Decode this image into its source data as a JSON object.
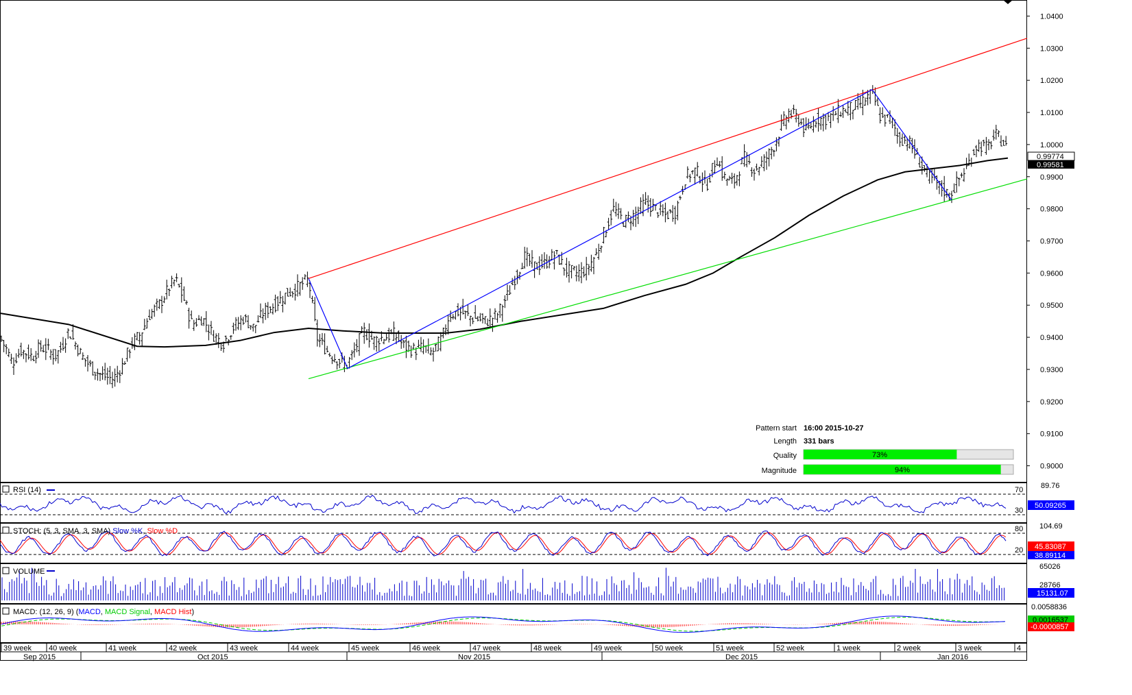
{
  "chart_data": {
    "type": "candlestick",
    "price_axis": {
      "ylim": [
        0.895,
        1.045
      ],
      "ticks": [
        "0.9000",
        "0.9100",
        "0.9200",
        "0.9300",
        "0.9400",
        "0.9500",
        "0.9600",
        "0.9700",
        "0.9800",
        "0.9900",
        "1.0000",
        "1.0100",
        "1.0200",
        "1.0300",
        "1.0400"
      ]
    },
    "last_price": "0.99774",
    "ma_value": "0.99581",
    "price_path": [
      {
        "x": 0,
        "y": 0.94
      },
      {
        "x": 10,
        "y": 0.936
      },
      {
        "x": 18,
        "y": 0.932
      },
      {
        "x": 30,
        "y": 0.936
      },
      {
        "x": 48,
        "y": 0.934
      },
      {
        "x": 58,
        "y": 0.937
      },
      {
        "x": 70,
        "y": 0.936
      },
      {
        "x": 80,
        "y": 0.934
      },
      {
        "x": 90,
        "y": 0.937
      },
      {
        "x": 100,
        "y": 0.942
      },
      {
        "x": 110,
        "y": 0.938
      },
      {
        "x": 120,
        "y": 0.934
      },
      {
        "x": 135,
        "y": 0.93
      },
      {
        "x": 150,
        "y": 0.928
      },
      {
        "x": 165,
        "y": 0.927
      },
      {
        "x": 178,
        "y": 0.931
      },
      {
        "x": 192,
        "y": 0.938
      },
      {
        "x": 205,
        "y": 0.941
      },
      {
        "x": 218,
        "y": 0.947
      },
      {
        "x": 235,
        "y": 0.951
      },
      {
        "x": 245,
        "y": 0.955
      },
      {
        "x": 256,
        "y": 0.958
      },
      {
        "x": 268,
        "y": 0.952
      },
      {
        "x": 280,
        "y": 0.944
      },
      {
        "x": 295,
        "y": 0.946
      },
      {
        "x": 310,
        "y": 0.941
      },
      {
        "x": 325,
        "y": 0.938
      },
      {
        "x": 340,
        "y": 0.943
      },
      {
        "x": 355,
        "y": 0.946
      },
      {
        "x": 370,
        "y": 0.943
      },
      {
        "x": 385,
        "y": 0.948
      },
      {
        "x": 400,
        "y": 0.95
      },
      {
        "x": 415,
        "y": 0.953
      },
      {
        "x": 430,
        "y": 0.955
      },
      {
        "x": 450,
        "y": 0.958
      },
      {
        "x": 462,
        "y": 0.94
      },
      {
        "x": 480,
        "y": 0.935
      },
      {
        "x": 505,
        "y": 0.931
      },
      {
        "x": 515,
        "y": 0.935
      },
      {
        "x": 530,
        "y": 0.942
      },
      {
        "x": 545,
        "y": 0.939
      },
      {
        "x": 560,
        "y": 0.94
      },
      {
        "x": 575,
        "y": 0.941
      },
      {
        "x": 590,
        "y": 0.937
      },
      {
        "x": 605,
        "y": 0.936
      },
      {
        "x": 618,
        "y": 0.937
      },
      {
        "x": 630,
        "y": 0.935
      },
      {
        "x": 645,
        "y": 0.94
      },
      {
        "x": 655,
        "y": 0.947
      },
      {
        "x": 670,
        "y": 0.948
      },
      {
        "x": 690,
        "y": 0.946
      },
      {
        "x": 710,
        "y": 0.945
      },
      {
        "x": 725,
        "y": 0.947
      },
      {
        "x": 740,
        "y": 0.953
      },
      {
        "x": 750,
        "y": 0.958
      },
      {
        "x": 765,
        "y": 0.965
      },
      {
        "x": 780,
        "y": 0.962
      },
      {
        "x": 795,
        "y": 0.963
      },
      {
        "x": 810,
        "y": 0.966
      },
      {
        "x": 825,
        "y": 0.961
      },
      {
        "x": 840,
        "y": 0.96
      },
      {
        "x": 855,
        "y": 0.961
      },
      {
        "x": 870,
        "y": 0.966
      },
      {
        "x": 880,
        "y": 0.972
      },
      {
        "x": 895,
        "y": 0.98
      },
      {
        "x": 910,
        "y": 0.976
      },
      {
        "x": 925,
        "y": 0.978
      },
      {
        "x": 940,
        "y": 0.982
      },
      {
        "x": 955,
        "y": 0.98
      },
      {
        "x": 970,
        "y": 0.978
      },
      {
        "x": 985,
        "y": 0.979
      },
      {
        "x": 1000,
        "y": 0.99
      },
      {
        "x": 1015,
        "y": 0.992
      },
      {
        "x": 1030,
        "y": 0.987
      },
      {
        "x": 1045,
        "y": 0.996
      },
      {
        "x": 1055,
        "y": 0.99
      },
      {
        "x": 1070,
        "y": 0.988
      },
      {
        "x": 1085,
        "y": 0.996
      },
      {
        "x": 1100,
        "y": 0.992
      },
      {
        "x": 1115,
        "y": 0.995
      },
      {
        "x": 1130,
        "y": 1.0
      },
      {
        "x": 1140,
        "y": 1.006
      },
      {
        "x": 1150,
        "y": 1.01
      },
      {
        "x": 1165,
        "y": 1.008
      },
      {
        "x": 1175,
        "y": 1.004
      },
      {
        "x": 1190,
        "y": 1.008
      },
      {
        "x": 1205,
        "y": 1.008
      },
      {
        "x": 1220,
        "y": 1.01
      },
      {
        "x": 1235,
        "y": 1.011
      },
      {
        "x": 1250,
        "y": 1.012
      },
      {
        "x": 1262,
        "y": 1.014
      },
      {
        "x": 1272,
        "y": 1.016
      },
      {
        "x": 1285,
        "y": 1.008
      },
      {
        "x": 1300,
        "y": 1.008
      },
      {
        "x": 1310,
        "y": 1.002
      },
      {
        "x": 1325,
        "y": 1.001
      },
      {
        "x": 1340,
        "y": 0.995
      },
      {
        "x": 1355,
        "y": 0.99
      },
      {
        "x": 1370,
        "y": 0.987
      },
      {
        "x": 1385,
        "y": 0.984
      },
      {
        "x": 1395,
        "y": 0.988
      },
      {
        "x": 1410,
        "y": 0.993
      },
      {
        "x": 1425,
        "y": 1.0
      },
      {
        "x": 1440,
        "y": 0.999
      },
      {
        "x": 1452,
        "y": 1.003
      },
      {
        "x": 1462,
        "y": 1.001
      },
      {
        "x": 1470,
        "y": 0.998
      }
    ],
    "moving_average": [
      {
        "x": 0,
        "y": 0.9475
      },
      {
        "x": 100,
        "y": 0.944
      },
      {
        "x": 200,
        "y": 0.9372
      },
      {
        "x": 240,
        "y": 0.937
      },
      {
        "x": 300,
        "y": 0.9375
      },
      {
        "x": 350,
        "y": 0.939
      },
      {
        "x": 400,
        "y": 0.9415
      },
      {
        "x": 450,
        "y": 0.9428
      },
      {
        "x": 500,
        "y": 0.942
      },
      {
        "x": 560,
        "y": 0.9413
      },
      {
        "x": 650,
        "y": 0.9413
      },
      {
        "x": 700,
        "y": 0.9425
      },
      {
        "x": 760,
        "y": 0.945
      },
      {
        "x": 820,
        "y": 0.947
      },
      {
        "x": 880,
        "y": 0.949
      },
      {
        "x": 940,
        "y": 0.953
      },
      {
        "x": 1000,
        "y": 0.9565
      },
      {
        "x": 1040,
        "y": 0.96
      },
      {
        "x": 1080,
        "y": 0.965
      },
      {
        "x": 1130,
        "y": 0.971
      },
      {
        "x": 1180,
        "y": 0.978
      },
      {
        "x": 1230,
        "y": 0.984
      },
      {
        "x": 1280,
        "y": 0.989
      },
      {
        "x": 1320,
        "y": 0.9915
      },
      {
        "x": 1360,
        "y": 0.9925
      },
      {
        "x": 1400,
        "y": 0.9935
      },
      {
        "x": 1440,
        "y": 0.995
      },
      {
        "x": 1470,
        "y": 0.9958
      }
    ],
    "overlays": {
      "resistance_line": [
        {
          "x": 450,
          "y": 0.9583
        },
        {
          "x": 1498,
          "y": 1.0331
        }
      ],
      "support_line": [
        {
          "x": 450,
          "y": 0.9271
        },
        {
          "x": 1498,
          "y": 0.9893
        }
      ],
      "pattern_zigzag": [
        {
          "x": 450,
          "y": 0.9583
        },
        {
          "x": 507,
          "y": 0.9303
        },
        {
          "x": 1272,
          "y": 1.0171
        },
        {
          "x": 1388,
          "y": 0.9827
        }
      ]
    },
    "pattern_info": {
      "pattern_start_label": "Pattern start",
      "pattern_start_value": "16:00 2015-10-27",
      "length_label": "Length",
      "length_value": "331 bars",
      "quality_label": "Quality",
      "quality": 73,
      "quality_text": "73%",
      "magnitude_label": "Magnitude",
      "magnitude": 94,
      "magnitude_text": "94%"
    },
    "rsi": {
      "label": "RSI (14)",
      "axis_top": "89.76",
      "level_high": "70",
      "level_low": "30",
      "value": "50.09265"
    },
    "stoch": {
      "label_prefix": "STOCH: (5, 3, SMA, 3, SMA)",
      "k_label": "Slow %K",
      "d_label": "Slow %D",
      "axis_top": "104.69",
      "level_high": "80",
      "level_low": "20",
      "k_value": "45.83087",
      "d_value": "38.89114"
    },
    "volume": {
      "label": "VOLUME",
      "axis_top": "65026",
      "axis_mid": "28766",
      "value": "15131.07"
    },
    "macd": {
      "label_prefix": "MACD: (12, 26, 9)",
      "macd_label": "MACD",
      "signal_label": "MACD Signal",
      "hist_label": "MACD Hist",
      "axis_top": "0.0058836",
      "macd_value": "0.0016537",
      "hist_value": "-0.0000857"
    },
    "weeks": [
      "39 week",
      "40 week",
      "41 week",
      "42 week",
      "43 week",
      "44 week",
      "45 week",
      "46 week",
      "47 week",
      "48 week",
      "49 week",
      "50 week",
      "51 week",
      "52 week",
      "1 week",
      "2 week",
      "3 week",
      "4"
    ],
    "months": [
      "Sep 2015",
      "Oct 2015",
      "Nov 2015",
      "Dec 2015",
      "Jan 2016"
    ],
    "colors": {
      "resistance": "#ff0000",
      "support": "#00dd00",
      "zigzag": "#0000ff",
      "ma": "#000000",
      "bar": "#000000",
      "rsi": "#0000cc",
      "stoch_k": "#0000cc",
      "stoch_d": "#ff0000",
      "volume": "#0000cc",
      "macd": "#0000ff",
      "signal": "#00cc00",
      "hist": "#ff0000",
      "quality_fill": "#00ee00",
      "value_box": "#0000ff",
      "stoch_box": "#ff0000",
      "macd_box": "#00cc00",
      "macd_hist_box": "#ff0000"
    }
  }
}
